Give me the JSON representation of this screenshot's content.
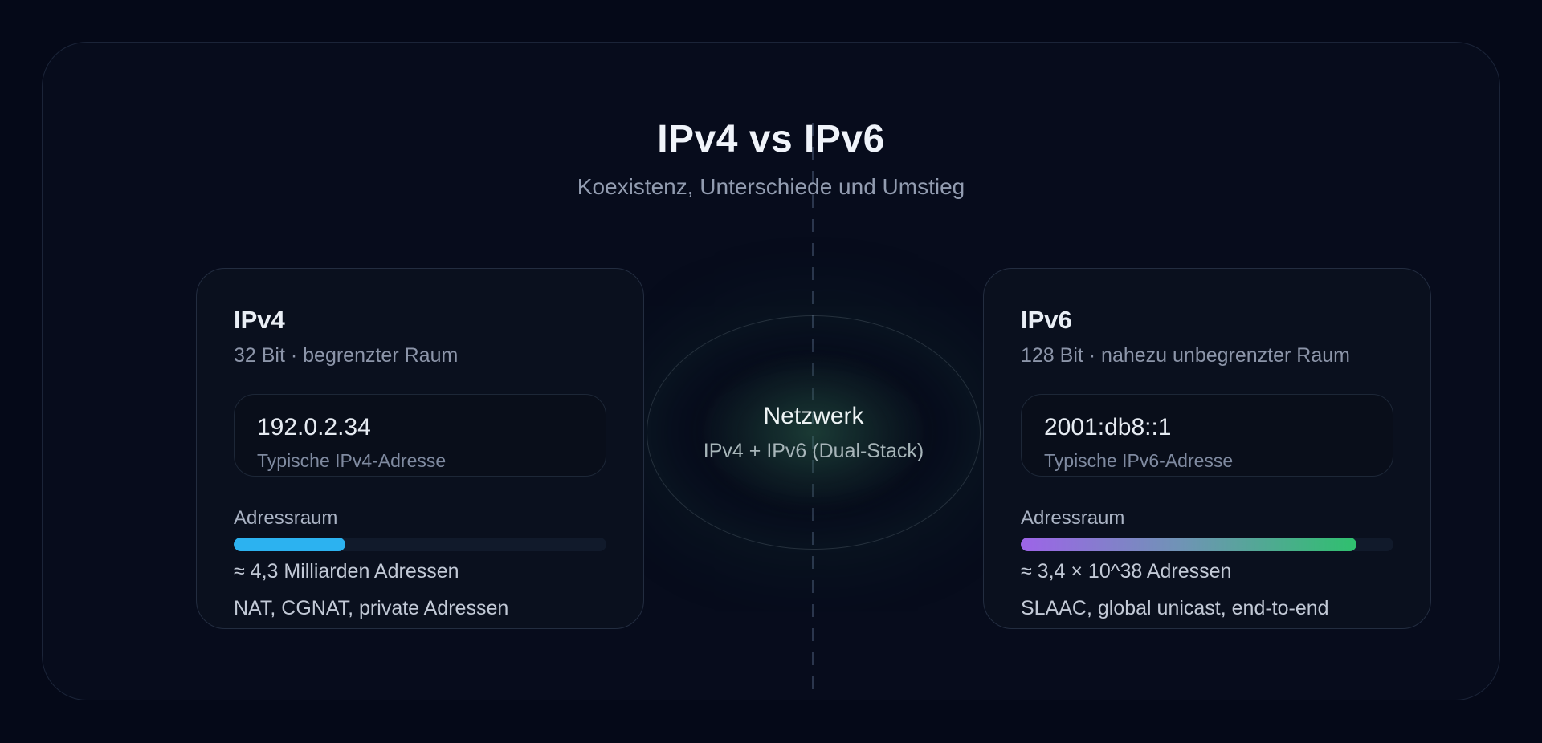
{
  "page": {
    "title": "IPv4 vs IPv6",
    "subtitle": "Koexistenz, Unterschiede und Umstieg"
  },
  "center": {
    "title": "Netzwerk",
    "subtitle": "IPv4 + IPv6 (Dual-Stack)"
  },
  "cards": {
    "ipv4": {
      "title": "IPv4",
      "subtitle": "32 Bit · begrenzter Raum",
      "address": "192.0.2.34",
      "address_label": "Typische IPv4-Adresse",
      "bar_label": "Adressraum",
      "bar_percent": 30,
      "bar_color": "#2cb2f0",
      "bar_caption": "≈ 4,3 Milliarden Adressen",
      "features": "NAT, CGNAT, private Adressen"
    },
    "ipv6": {
      "title": "IPv6",
      "subtitle": "128 Bit · nahezu unbegrenzter Raum",
      "address": "2001:db8::1",
      "address_label": "Typische IPv6-Adresse",
      "bar_label": "Adressraum",
      "bar_percent": 90,
      "bar_gradient": [
        "#9d64e8",
        "#6f94b5",
        "#2fc06e"
      ],
      "bar_caption": "≈ 3,4 × 10^38 Adressen",
      "features": "SLAAC, global unicast, end-to-end"
    }
  },
  "colors": {
    "background": "#050918",
    "card_background": "#0a101e",
    "accent_blue": "#2cb2f0",
    "accent_purple": "#9d64e8",
    "accent_green": "#2fc06e",
    "glow_green": "#2a6e52"
  }
}
